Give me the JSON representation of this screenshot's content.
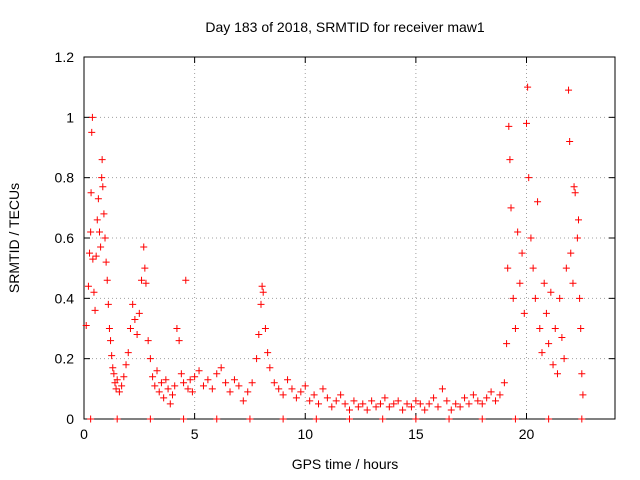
{
  "chart_data": {
    "type": "scatter",
    "title": "Day 183 of 2018, SRMTID for receiver maw1",
    "xlabel": "GPS time / hours",
    "ylabel": "SRMTID / TECUs",
    "xlim": [
      0,
      24
    ],
    "ylim": [
      0,
      1.2
    ],
    "xticks": [
      "0",
      "5",
      "10",
      "15",
      "20"
    ],
    "yticks": [
      "0",
      "0.2",
      "0.4",
      "0.6",
      "0.8",
      "1",
      "1.2"
    ],
    "grid": true,
    "marker": "+",
    "color": "#ff0000",
    "series_name": "SRMTID",
    "points": [
      [
        0.1,
        0.31
      ],
      [
        0.2,
        0.44
      ],
      [
        0.25,
        0.55
      ],
      [
        0.3,
        0.62
      ],
      [
        0.32,
        0.75
      ],
      [
        0.35,
        0.95
      ],
      [
        0.38,
        1.0
      ],
      [
        0.4,
        0.53
      ],
      [
        0.45,
        0.42
      ],
      [
        0.5,
        0.36
      ],
      [
        0.55,
        0.54
      ],
      [
        0.6,
        0.66
      ],
      [
        0.65,
        0.73
      ],
      [
        0.7,
        0.62
      ],
      [
        0.75,
        0.57
      ],
      [
        0.8,
        0.8
      ],
      [
        0.82,
        0.86
      ],
      [
        0.85,
        0.77
      ],
      [
        0.9,
        0.68
      ],
      [
        0.95,
        0.6
      ],
      [
        1.0,
        0.52
      ],
      [
        1.05,
        0.46
      ],
      [
        1.1,
        0.38
      ],
      [
        1.15,
        0.3
      ],
      [
        1.2,
        0.26
      ],
      [
        1.25,
        0.21
      ],
      [
        1.3,
        0.17
      ],
      [
        1.35,
        0.15
      ],
      [
        1.4,
        0.12
      ],
      [
        1.45,
        0.1
      ],
      [
        1.5,
        0.13
      ],
      [
        1.6,
        0.09
      ],
      [
        1.7,
        0.11
      ],
      [
        1.8,
        0.14
      ],
      [
        1.9,
        0.18
      ],
      [
        2.0,
        0.22
      ],
      [
        2.1,
        0.3
      ],
      [
        2.2,
        0.38
      ],
      [
        2.3,
        0.33
      ],
      [
        2.4,
        0.28
      ],
      [
        2.5,
        0.35
      ],
      [
        2.6,
        0.46
      ],
      [
        2.7,
        0.57
      ],
      [
        2.75,
        0.5
      ],
      [
        2.8,
        0.45
      ],
      [
        2.9,
        0.26
      ],
      [
        3.0,
        0.2
      ],
      [
        3.1,
        0.14
      ],
      [
        3.2,
        0.11
      ],
      [
        3.3,
        0.16
      ],
      [
        3.4,
        0.09
      ],
      [
        3.5,
        0.12
      ],
      [
        3.6,
        0.07
      ],
      [
        3.7,
        0.13
      ],
      [
        3.8,
        0.1
      ],
      [
        3.9,
        0.05
      ],
      [
        4.0,
        0.08
      ],
      [
        4.1,
        0.11
      ],
      [
        4.2,
        0.3
      ],
      [
        4.3,
        0.26
      ],
      [
        4.4,
        0.15
      ],
      [
        4.5,
        0.12
      ],
      [
        4.6,
        0.46
      ],
      [
        4.7,
        0.1
      ],
      [
        4.8,
        0.13
      ],
      [
        4.9,
        0.09
      ],
      [
        5.0,
        0.14
      ],
      [
        5.2,
        0.16
      ],
      [
        5.4,
        0.11
      ],
      [
        5.6,
        0.13
      ],
      [
        5.8,
        0.1
      ],
      [
        6.0,
        0.15
      ],
      [
        6.2,
        0.17
      ],
      [
        6.4,
        0.12
      ],
      [
        6.6,
        0.09
      ],
      [
        6.8,
        0.13
      ],
      [
        7.0,
        0.11
      ],
      [
        7.2,
        0.06
      ],
      [
        7.4,
        0.09
      ],
      [
        7.6,
        0.12
      ],
      [
        7.8,
        0.2
      ],
      [
        7.9,
        0.28
      ],
      [
        8.0,
        0.38
      ],
      [
        8.05,
        0.44
      ],
      [
        8.1,
        0.42
      ],
      [
        8.2,
        0.3
      ],
      [
        8.3,
        0.22
      ],
      [
        8.4,
        0.17
      ],
      [
        8.6,
        0.12
      ],
      [
        8.8,
        0.1
      ],
      [
        9.0,
        0.08
      ],
      [
        9.2,
        0.13
      ],
      [
        9.4,
        0.1
      ],
      [
        9.6,
        0.07
      ],
      [
        9.8,
        0.09
      ],
      [
        10.0,
        0.11
      ],
      [
        10.2,
        0.06
      ],
      [
        10.4,
        0.08
      ],
      [
        10.6,
        0.05
      ],
      [
        10.8,
        0.1
      ],
      [
        11.0,
        0.07
      ],
      [
        11.2,
        0.04
      ],
      [
        11.4,
        0.06
      ],
      [
        11.6,
        0.08
      ],
      [
        11.8,
        0.05
      ],
      [
        12.0,
        0.03
      ],
      [
        12.2,
        0.06
      ],
      [
        12.4,
        0.04
      ],
      [
        12.6,
        0.05
      ],
      [
        12.8,
        0.03
      ],
      [
        13.0,
        0.06
      ],
      [
        13.2,
        0.04
      ],
      [
        13.4,
        0.05
      ],
      [
        13.6,
        0.07
      ],
      [
        13.8,
        0.04
      ],
      [
        14.0,
        0.05
      ],
      [
        14.2,
        0.06
      ],
      [
        14.4,
        0.03
      ],
      [
        14.6,
        0.05
      ],
      [
        14.8,
        0.04
      ],
      [
        15.0,
        0.06
      ],
      [
        15.2,
        0.05
      ],
      [
        15.4,
        0.03
      ],
      [
        15.6,
        0.05
      ],
      [
        15.8,
        0.07
      ],
      [
        16.0,
        0.04
      ],
      [
        16.2,
        0.1
      ],
      [
        16.4,
        0.06
      ],
      [
        16.6,
        0.03
      ],
      [
        16.8,
        0.05
      ],
      [
        17.0,
        0.04
      ],
      [
        17.2,
        0.07
      ],
      [
        17.4,
        0.05
      ],
      [
        17.6,
        0.08
      ],
      [
        17.8,
        0.06
      ],
      [
        18.0,
        0.05
      ],
      [
        18.2,
        0.07
      ],
      [
        18.4,
        0.09
      ],
      [
        18.6,
        0.06
      ],
      [
        18.8,
        0.08
      ],
      [
        19.0,
        0.12
      ],
      [
        19.1,
        0.25
      ],
      [
        19.15,
        0.5
      ],
      [
        19.2,
        0.97
      ],
      [
        19.25,
        0.86
      ],
      [
        19.3,
        0.7
      ],
      [
        19.4,
        0.4
      ],
      [
        19.5,
        0.3
      ],
      [
        19.6,
        0.62
      ],
      [
        19.7,
        0.45
      ],
      [
        19.8,
        0.55
      ],
      [
        19.9,
        0.35
      ],
      [
        20.0,
        0.98
      ],
      [
        20.05,
        1.1
      ],
      [
        20.1,
        0.8
      ],
      [
        20.2,
        0.6
      ],
      [
        20.3,
        0.5
      ],
      [
        20.4,
        0.4
      ],
      [
        20.5,
        0.72
      ],
      [
        20.6,
        0.3
      ],
      [
        20.7,
        0.22
      ],
      [
        20.8,
        0.45
      ],
      [
        20.9,
        0.35
      ],
      [
        21.0,
        0.25
      ],
      [
        21.1,
        0.42
      ],
      [
        21.2,
        0.18
      ],
      [
        21.3,
        0.3
      ],
      [
        21.4,
        0.15
      ],
      [
        21.5,
        0.4
      ],
      [
        21.6,
        0.27
      ],
      [
        21.7,
        0.2
      ],
      [
        21.8,
        0.5
      ],
      [
        21.9,
        1.09
      ],
      [
        21.95,
        0.92
      ],
      [
        22.0,
        0.55
      ],
      [
        22.1,
        0.45
      ],
      [
        22.15,
        0.77
      ],
      [
        22.2,
        0.75
      ],
      [
        22.3,
        0.6
      ],
      [
        22.35,
        0.66
      ],
      [
        22.4,
        0.4
      ],
      [
        22.45,
        0.3
      ],
      [
        22.5,
        0.15
      ],
      [
        22.55,
        0.08
      ],
      [
        0.3,
        0.0
      ],
      [
        1.5,
        0.0
      ],
      [
        3.0,
        0.0
      ],
      [
        4.5,
        0.0
      ],
      [
        6.0,
        0.0
      ],
      [
        7.5,
        0.0
      ],
      [
        9.0,
        0.0
      ],
      [
        10.5,
        0.0
      ],
      [
        12.0,
        0.0
      ],
      [
        13.5,
        0.0
      ],
      [
        15.0,
        0.0
      ],
      [
        16.5,
        0.0
      ],
      [
        18.0,
        0.0
      ],
      [
        19.5,
        0.0
      ],
      [
        21.0,
        0.0
      ],
      [
        22.5,
        0.0
      ]
    ]
  }
}
